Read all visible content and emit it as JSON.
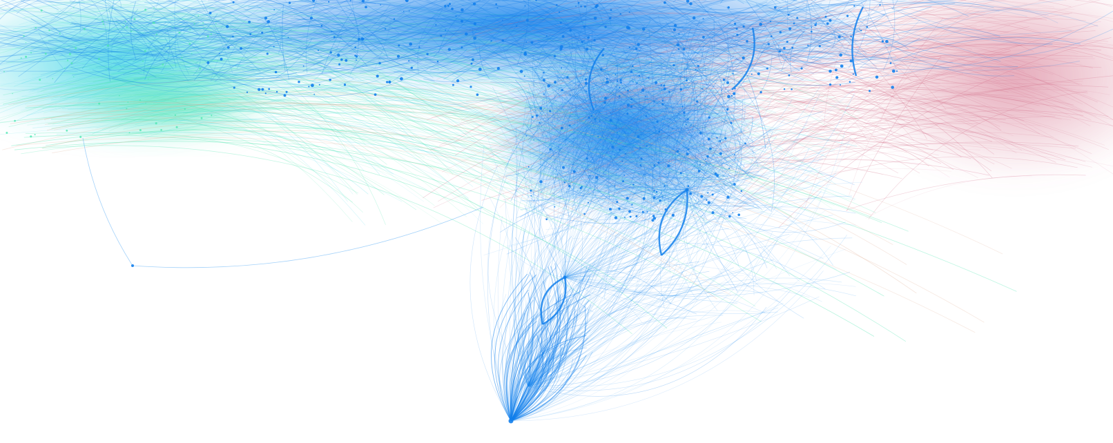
{
  "figure": {
    "kind": "network-graph-visualization",
    "background": "#ffffff",
    "palette": {
      "blue_core": "#1380ec",
      "blue_light": "#4aa6f5",
      "cyan": "#3fd6e6",
      "green": "#4fe6b0",
      "pink": "#d26a86",
      "peach": "#e3b7a0"
    },
    "clusters": [
      {
        "name": "top-dense-blue",
        "color": "#1380ec"
      },
      {
        "name": "left-cyan-green",
        "color": "#3fd6e6"
      },
      {
        "name": "right-pink",
        "color": "#d26a86"
      },
      {
        "name": "central-hub-chain",
        "color": "#1380ec"
      }
    ],
    "has_text_labels": false
  }
}
